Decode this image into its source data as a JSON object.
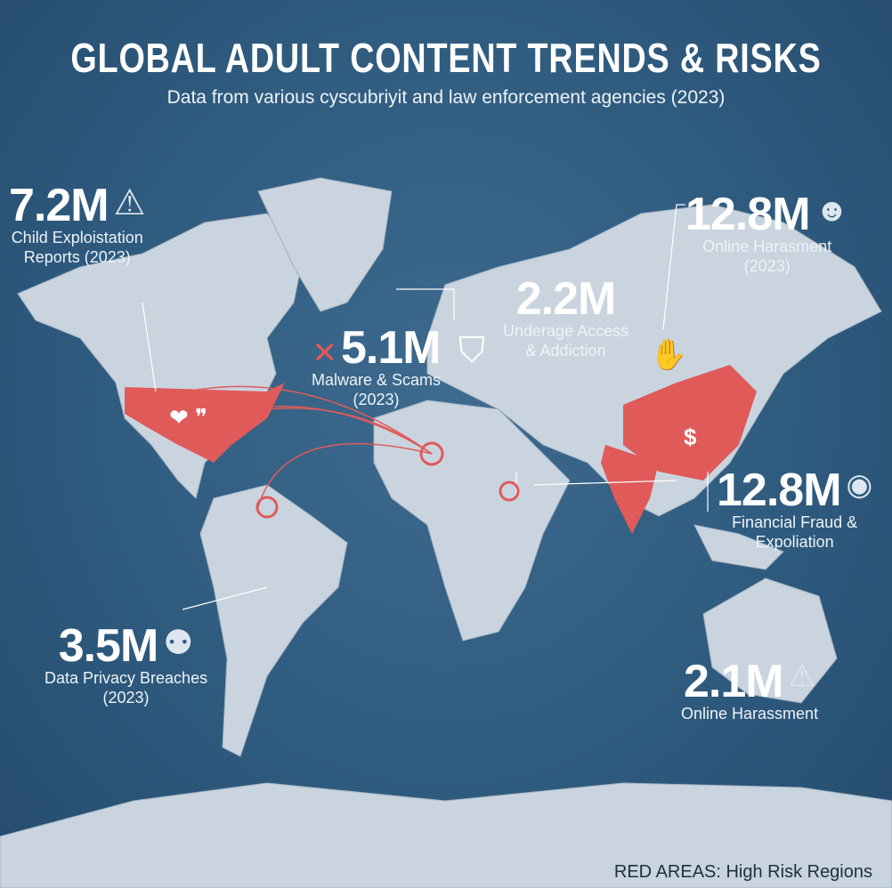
{
  "header": {
    "title": "GLOBAL ADULT CONTENT TRENDS & RISKS",
    "subtitle": "Data from various cyscubriyit and law enforcement agencies (2023)"
  },
  "stats": [
    {
      "value": "7.2M",
      "label1": "Child Exploistation",
      "label2": "Reports (2023)",
      "icon": "warning-icon"
    },
    {
      "value": "5.1M",
      "label1": "Malware & Scams",
      "label2": "(2023)",
      "icon": "x-icon"
    },
    {
      "value": "2.2M",
      "label1": "Underage Access",
      "label2": "& Addiction",
      "icon": "shield-icon"
    },
    {
      "value": "12.8M",
      "label1": "Online Harasment",
      "label2": "(2023)",
      "icon": "face-icon"
    },
    {
      "value": "12.8M",
      "label1": "Financial Fraud &",
      "label2": "Expoliation",
      "icon": "eye-icon"
    },
    {
      "value": "3.5M",
      "label1": "Data Privacy Breaches",
      "label2": "(2023)",
      "icon": "robot-icon"
    },
    {
      "value": "2.1M",
      "label1": "Online Harassment",
      "label2": "",
      "icon": "alarm-icon"
    }
  ],
  "legend": "RED AREAS: High Risk Regions",
  "colors": {
    "ocean": "#2f5b7f",
    "land": "#c9d4df",
    "high_risk": "#e05a5a",
    "text": "#ffffff"
  },
  "high_risk_regions": [
    "United States",
    "China",
    "India"
  ]
}
